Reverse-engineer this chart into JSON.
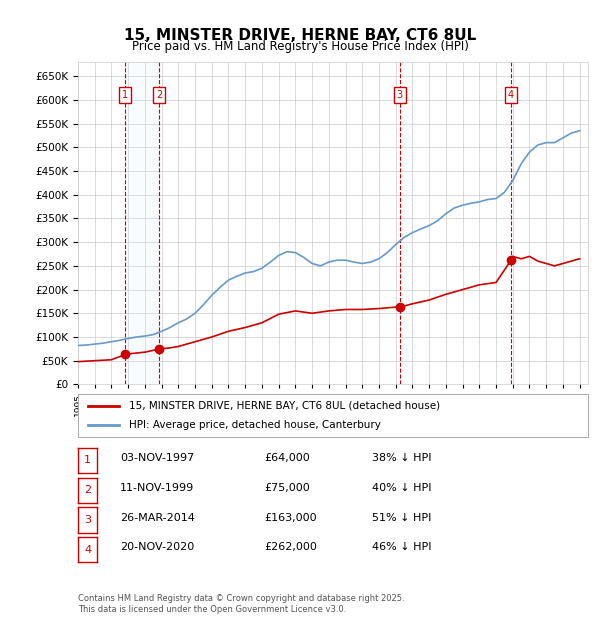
{
  "title": "15, MINSTER DRIVE, HERNE BAY, CT6 8UL",
  "subtitle": "Price paid vs. HM Land Registry's House Price Index (HPI)",
  "ylim": [
    0,
    680000
  ],
  "yticks": [
    0,
    50000,
    100000,
    150000,
    200000,
    250000,
    300000,
    350000,
    400000,
    450000,
    500000,
    550000,
    600000,
    650000
  ],
  "ylabel_format": "£{0}K",
  "x_start_year": 1995,
  "x_end_year": 2025,
  "sale_dates": [
    "1997-11-03",
    "1999-11-11",
    "2014-03-26",
    "2020-11-20"
  ],
  "sale_prices": [
    64000,
    75000,
    163000,
    262000
  ],
  "sale_labels": [
    "1",
    "2",
    "3",
    "4"
  ],
  "sale_hpi_pct": [
    "38% ↓ HPI",
    "40% ↓ HPI",
    "51% ↓ HPI",
    "46% ↓ HPI"
  ],
  "sale_date_strs": [
    "03-NOV-1997",
    "11-NOV-1999",
    "26-MAR-2014",
    "20-NOV-2020"
  ],
  "sale_price_strs": [
    "£64,000",
    "£75,000",
    "£163,000",
    "£262,000"
  ],
  "line_color_red": "#cc0000",
  "line_color_blue": "#6699cc",
  "shade_color": "#ddeeff",
  "grid_color": "#cccccc",
  "label_box_color": "#cc0000",
  "bg_color": "#ffffff",
  "legend_label_red": "15, MINSTER DRIVE, HERNE BAY, CT6 8UL (detached house)",
  "legend_label_blue": "HPI: Average price, detached house, Canterbury",
  "footnote": "Contains HM Land Registry data © Crown copyright and database right 2025.\nThis data is licensed under the Open Government Licence v3.0.",
  "hpi_years": [
    1995,
    1995.5,
    1996,
    1996.5,
    1997,
    1997.5,
    1998,
    1998.5,
    1999,
    1999.5,
    2000,
    2000.5,
    2001,
    2001.5,
    2002,
    2002.5,
    2003,
    2003.5,
    2004,
    2004.5,
    2005,
    2005.5,
    2006,
    2006.5,
    2007,
    2007.5,
    2008,
    2008.5,
    2009,
    2009.5,
    2010,
    2010.5,
    2011,
    2011.5,
    2012,
    2012.5,
    2013,
    2013.5,
    2014,
    2014.5,
    2015,
    2015.5,
    2016,
    2016.5,
    2017,
    2017.5,
    2018,
    2018.5,
    2019,
    2019.5,
    2020,
    2020.5,
    2021,
    2021.5,
    2022,
    2022.5,
    2023,
    2023.5,
    2024,
    2024.5,
    2025
  ],
  "hpi_values": [
    82000,
    83000,
    85000,
    87000,
    90000,
    93000,
    97000,
    100000,
    102000,
    105000,
    112000,
    120000,
    130000,
    138000,
    150000,
    168000,
    188000,
    205000,
    220000,
    228000,
    235000,
    238000,
    245000,
    258000,
    272000,
    280000,
    278000,
    268000,
    255000,
    250000,
    258000,
    262000,
    262000,
    258000,
    255000,
    258000,
    265000,
    278000,
    295000,
    310000,
    320000,
    328000,
    335000,
    345000,
    360000,
    372000,
    378000,
    382000,
    385000,
    390000,
    392000,
    405000,
    430000,
    465000,
    490000,
    505000,
    510000,
    510000,
    520000,
    530000,
    535000
  ],
  "red_years": [
    1995,
    1996,
    1997,
    1997.9,
    1999,
    1999.9,
    2000.5,
    2001,
    2002,
    2003,
    2004,
    2005,
    2006,
    2007,
    2008,
    2009,
    2010,
    2011,
    2012,
    2013,
    2014,
    2014.25,
    2015,
    2016,
    2017,
    2018,
    2019,
    2020,
    2020.9,
    2021,
    2021.5,
    2022,
    2022.5,
    2023,
    2023.5,
    2024,
    2024.5,
    2025
  ],
  "red_values": [
    48000,
    50000,
    52000,
    64000,
    68000,
    75000,
    77000,
    80000,
    90000,
    100000,
    112000,
    120000,
    130000,
    148000,
    155000,
    150000,
    155000,
    158000,
    158000,
    160000,
    163000,
    163000,
    170000,
    178000,
    190000,
    200000,
    210000,
    215000,
    262000,
    270000,
    265000,
    270000,
    260000,
    255000,
    250000,
    255000,
    260000,
    265000
  ]
}
